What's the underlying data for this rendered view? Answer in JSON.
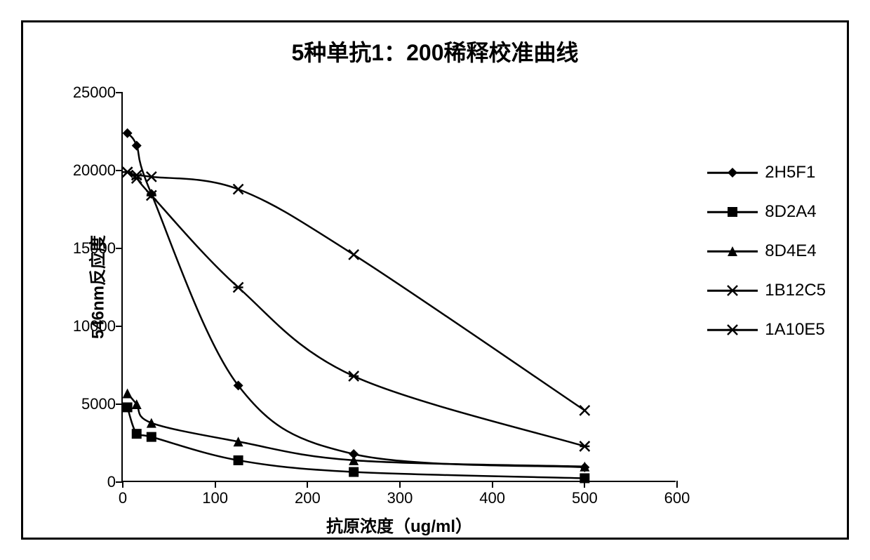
{
  "chart": {
    "type": "line",
    "title": "5种单抗1：200稀释校准曲线",
    "title_fontsize": 32,
    "xlabel": "抗原浓度（ug/ml）",
    "ylabel": "546nm反应度",
    "label_fontsize": 24,
    "tick_fontsize": 22,
    "xlim": [
      0,
      600
    ],
    "ylim": [
      0,
      25000
    ],
    "xtick_step": 100,
    "ytick_step": 5000,
    "xticks": [
      0,
      100,
      200,
      300,
      400,
      500,
      600
    ],
    "yticks": [
      0,
      5000,
      10000,
      15000,
      20000,
      25000
    ],
    "background_color": "#ffffff",
    "border_color": "#000000",
    "line_color": "#000000",
    "line_width": 2.5,
    "marker_size": 14,
    "series": [
      {
        "name": "2H5F1",
        "marker": "diamond",
        "x": [
          5,
          15,
          31,
          125,
          250,
          500
        ],
        "y": [
          22400,
          21600,
          18500,
          6200,
          1800,
          950
        ]
      },
      {
        "name": "8D2A4",
        "marker": "square",
        "x": [
          5,
          15,
          31,
          125,
          250,
          500
        ],
        "y": [
          4800,
          3100,
          2900,
          1400,
          650,
          250
        ]
      },
      {
        "name": "8D4E4",
        "marker": "triangle",
        "x": [
          5,
          15,
          31,
          125,
          250,
          500
        ],
        "y": [
          5700,
          5000,
          3800,
          2600,
          1400,
          1000
        ]
      },
      {
        "name": "1B12C5",
        "marker": "x",
        "x": [
          5,
          15,
          31,
          125,
          250,
          500
        ],
        "y": [
          19900,
          19700,
          19600,
          18800,
          14600,
          4600
        ]
      },
      {
        "name": "1A10E5",
        "marker": "asterisk",
        "x": [
          5,
          15,
          31,
          125,
          250,
          500
        ],
        "y": [
          19900,
          19500,
          18400,
          12500,
          6800,
          2300
        ]
      }
    ]
  }
}
